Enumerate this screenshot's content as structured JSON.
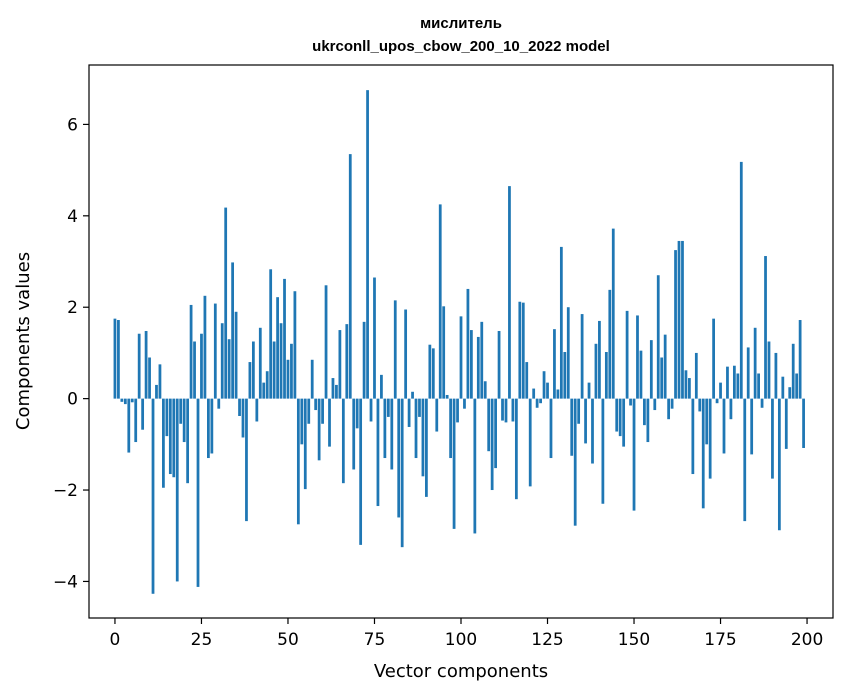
{
  "chart_data": {
    "type": "bar",
    "title": "мислитель",
    "subtitle": "ukrconll_upos_cbow_200_10_2022 model",
    "xlabel": "Vector components",
    "ylabel": "Components values",
    "xlim": [
      -7.5,
      207.5
    ],
    "ylim": [
      -4.8,
      7.3
    ],
    "xticks": [
      0,
      25,
      50,
      75,
      100,
      125,
      150,
      175,
      200
    ],
    "xtick_labels": [
      "0",
      "25",
      "50",
      "75",
      "100",
      "125",
      "150",
      "175",
      "200"
    ],
    "yticks": [
      -4,
      -2,
      0,
      2,
      4,
      6
    ],
    "ytick_labels": [
      "−4",
      "−2",
      "0",
      "2",
      "4",
      "6"
    ],
    "bar_color": "#1f77b4",
    "grid": false,
    "x": [
      0,
      1,
      2,
      3,
      4,
      5,
      6,
      7,
      8,
      9,
      10,
      11,
      12,
      13,
      14,
      15,
      16,
      17,
      18,
      19,
      20,
      21,
      22,
      23,
      24,
      25,
      26,
      27,
      28,
      29,
      30,
      31,
      32,
      33,
      34,
      35,
      36,
      37,
      38,
      39,
      40,
      41,
      42,
      43,
      44,
      45,
      46,
      47,
      48,
      49,
      50,
      51,
      52,
      53,
      54,
      55,
      56,
      57,
      58,
      59,
      60,
      61,
      62,
      63,
      64,
      65,
      66,
      67,
      68,
      69,
      70,
      71,
      72,
      73,
      74,
      75,
      76,
      77,
      78,
      79,
      80,
      81,
      82,
      83,
      84,
      85,
      86,
      87,
      88,
      89,
      90,
      91,
      92,
      93,
      94,
      95,
      96,
      97,
      98,
      99,
      100,
      101,
      102,
      103,
      104,
      105,
      106,
      107,
      108,
      109,
      110,
      111,
      112,
      113,
      114,
      115,
      116,
      117,
      118,
      119,
      120,
      121,
      122,
      123,
      124,
      125,
      126,
      127,
      128,
      129,
      130,
      131,
      132,
      133,
      134,
      135,
      136,
      137,
      138,
      139,
      140,
      141,
      142,
      143,
      144,
      145,
      146,
      147,
      148,
      149,
      150,
      151,
      152,
      153,
      154,
      155,
      156,
      157,
      158,
      159,
      160,
      161,
      162,
      163,
      164,
      165,
      166,
      167,
      168,
      169,
      170,
      171,
      172,
      173,
      174,
      175,
      176,
      177,
      178,
      179,
      180,
      181,
      182,
      183,
      184,
      185,
      186,
      187,
      188,
      189,
      190,
      191,
      192,
      193,
      194,
      195,
      196,
      197,
      198,
      199
    ],
    "values": [
      1.75,
      1.72,
      -0.07,
      -0.12,
      -1.18,
      -0.08,
      -0.95,
      1.42,
      -0.68,
      1.48,
      0.9,
      -4.27,
      0.3,
      0.75,
      -1.95,
      -0.82,
      -1.65,
      -1.72,
      -4.0,
      -0.55,
      -0.95,
      -1.85,
      2.05,
      1.25,
      -4.12,
      1.42,
      2.25,
      -1.3,
      -1.2,
      2.08,
      -0.22,
      1.65,
      4.18,
      1.3,
      2.98,
      1.9,
      -0.38,
      -0.85,
      -2.68,
      0.8,
      1.25,
      -0.5,
      1.55,
      0.35,
      0.6,
      2.83,
      1.25,
      2.22,
      1.65,
      2.62,
      0.85,
      1.2,
      2.35,
      -2.75,
      -1.0,
      -1.98,
      -0.55,
      0.85,
      -0.25,
      -1.35,
      -0.55,
      2.48,
      -1.05,
      0.45,
      0.3,
      1.5,
      -1.85,
      1.63,
      5.35,
      -1.55,
      -0.65,
      -3.2,
      1.68,
      6.75,
      -0.5,
      2.65,
      -2.35,
      0.52,
      -1.3,
      -0.4,
      -1.55,
      2.15,
      -2.6,
      -3.25,
      1.95,
      -0.62,
      0.15,
      -1.3,
      -0.4,
      -1.7,
      -2.15,
      1.18,
      1.1,
      -0.72,
      4.25,
      2.02,
      0.08,
      -1.3,
      -2.85,
      -0.52,
      1.8,
      -0.22,
      2.4,
      1.5,
      -2.95,
      1.35,
      1.68,
      0.38,
      -1.15,
      -2.0,
      -1.52,
      1.48,
      -0.48,
      -0.52,
      4.65,
      -0.5,
      -2.2,
      2.12,
      2.1,
      0.8,
      -1.92,
      0.22,
      -0.2,
      -0.1,
      0.6,
      0.35,
      -1.3,
      1.52,
      0.2,
      3.32,
      1.02,
      2.0,
      -1.25,
      -2.78,
      -0.55,
      1.85,
      -0.98,
      0.35,
      -1.42,
      1.2,
      1.7,
      -2.3,
      1.02,
      2.38,
      3.72,
      -0.72,
      -0.82,
      -1.05,
      1.92,
      -0.15,
      -2.45,
      1.82,
      1.05,
      -0.58,
      -0.95,
      1.28,
      -0.25,
      2.7,
      0.9,
      1.4,
      -0.45,
      -0.22,
      3.25,
      3.45,
      3.45,
      0.62,
      0.45,
      -1.65,
      1.0,
      -0.28,
      -2.4,
      -1.0,
      -1.75,
      1.75,
      -0.1,
      0.35,
      -1.2,
      0.7,
      -0.45,
      0.72,
      0.55,
      5.18,
      -2.68,
      1.12,
      -1.22,
      1.55,
      0.55,
      -0.2,
      3.12,
      1.25,
      -1.75,
      1.0,
      -2.88,
      0.48,
      -1.1,
      0.25,
      1.2,
      0.55,
      1.72,
      -1.08
    ]
  }
}
